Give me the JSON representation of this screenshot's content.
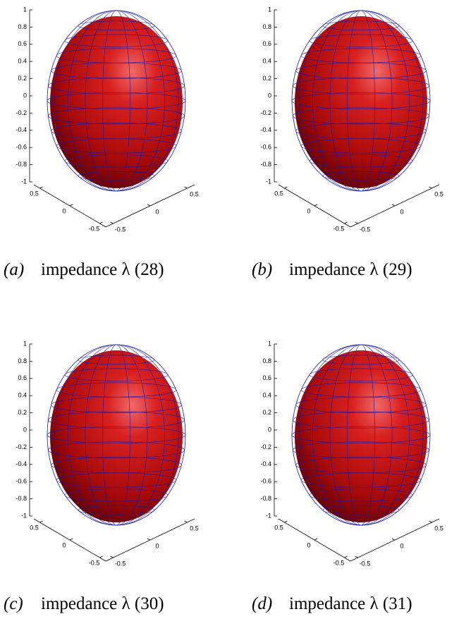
{
  "chart_data": [
    {
      "type": "surface",
      "label": "(a)",
      "caption": "impedance λ (28)",
      "zlim": [
        -1,
        1
      ],
      "zticks": [
        1,
        0.8,
        0.6,
        0.4,
        0.2,
        0,
        -0.2,
        -0.4,
        -0.6,
        -0.8,
        -1
      ],
      "xlim": [
        -0.6,
        0.6
      ],
      "xticks": [
        0.5,
        0,
        -0.5
      ],
      "ylim": [
        -0.6,
        0.6
      ],
      "yticks": [
        -0.5,
        0,
        0.5
      ]
    },
    {
      "type": "surface",
      "label": "(b)",
      "caption": "impedance λ (29)",
      "zlim": [
        -1,
        1
      ],
      "zticks": [
        1,
        0.8,
        0.6,
        0.4,
        0.2,
        0,
        -0.2,
        -0.4,
        -0.6,
        -0.8,
        -1
      ],
      "xlim": [
        -0.6,
        0.6
      ],
      "xticks": [
        0.5,
        0,
        -0.5
      ],
      "ylim": [
        -0.6,
        0.6
      ],
      "yticks": [
        -0.5,
        0,
        0.5
      ]
    },
    {
      "type": "surface",
      "label": "(c)",
      "caption": "impedance λ (30)",
      "zlim": [
        -1,
        1
      ],
      "zticks": [
        1,
        0.8,
        0.6,
        0.4,
        0.2,
        0,
        -0.2,
        -0.4,
        -0.6,
        -0.8,
        -1
      ],
      "xlim": [
        -0.6,
        0.6
      ],
      "xticks": [
        0.5,
        0,
        -0.5
      ],
      "ylim": [
        -0.6,
        0.6
      ],
      "yticks": [
        -0.5,
        0,
        0.5
      ]
    },
    {
      "type": "surface",
      "label": "(d)",
      "caption": "impedance λ (31)",
      "zlim": [
        -1,
        1
      ],
      "zticks": [
        1,
        0.8,
        0.6,
        0.4,
        0.2,
        0,
        -0.2,
        -0.4,
        -0.6,
        -0.8,
        -1
      ],
      "xlim": [
        -0.6,
        0.6
      ],
      "xticks": [
        0.5,
        0,
        -0.5
      ],
      "ylim": [
        -0.6,
        0.6
      ],
      "yticks": [
        -0.5,
        0,
        0.5
      ]
    }
  ]
}
